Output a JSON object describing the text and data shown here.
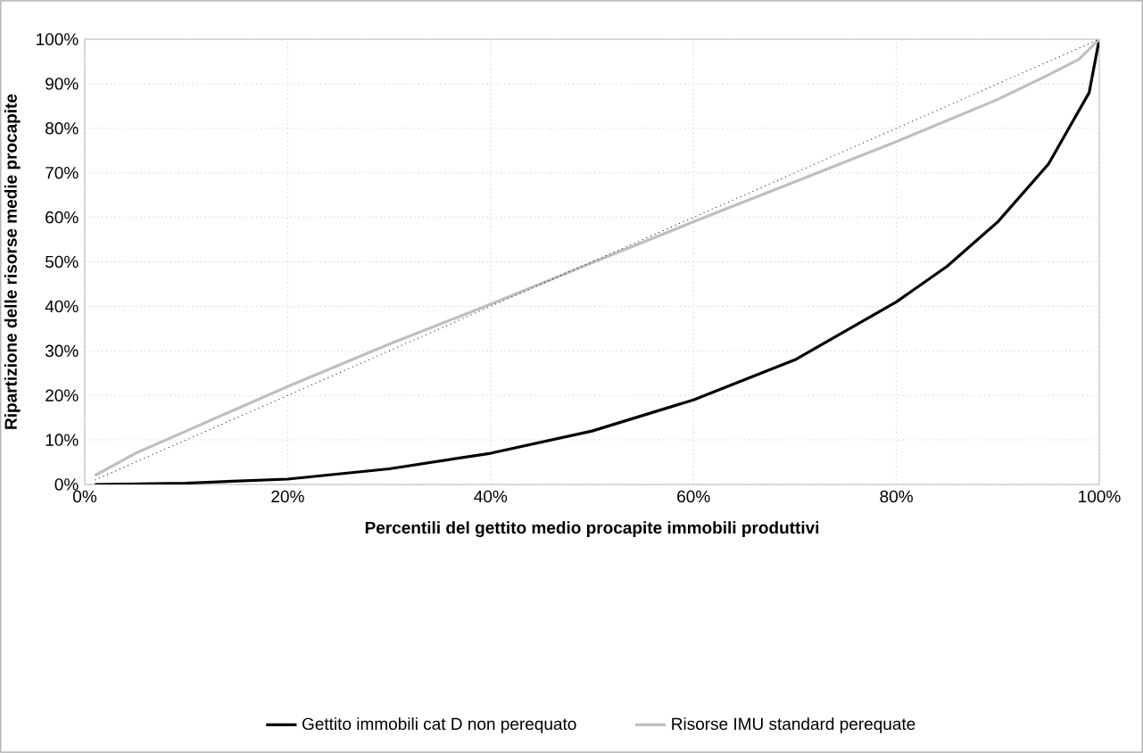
{
  "chart_data": {
    "type": "line",
    "xlabel": "Percentili del gettito medio procapite immobili produttivi",
    "ylabel": "Ripartizione delle risorse medie procapite",
    "xlim": [
      0,
      100
    ],
    "ylim": [
      0,
      100
    ],
    "xticks": [
      {
        "value": 0,
        "label": "0%"
      },
      {
        "value": 20,
        "label": "20%"
      },
      {
        "value": 40,
        "label": "40%"
      },
      {
        "value": 60,
        "label": "60%"
      },
      {
        "value": 80,
        "label": "80%"
      },
      {
        "value": 100,
        "label": "100%"
      }
    ],
    "yticks": [
      {
        "value": 0,
        "label": "0%"
      },
      {
        "value": 10,
        "label": "10%"
      },
      {
        "value": 20,
        "label": "20%"
      },
      {
        "value": 30,
        "label": "30%"
      },
      {
        "value": 40,
        "label": "40%"
      },
      {
        "value": 50,
        "label": "50%"
      },
      {
        "value": 60,
        "label": "60%"
      },
      {
        "value": 70,
        "label": "70%"
      },
      {
        "value": 80,
        "label": "80%"
      },
      {
        "value": 90,
        "label": "90%"
      },
      {
        "value": 100,
        "label": "100%"
      }
    ],
    "grid": true,
    "legend": "bottom",
    "series": [
      {
        "name": "Gettito immobili cat D non perequato",
        "color": "#000000",
        "line_style": "solid",
        "x": [
          1,
          10,
          20,
          30,
          40,
          50,
          60,
          70,
          80,
          85,
          90,
          95,
          97,
          99,
          100
        ],
        "values": [
          0,
          0.3,
          1.2,
          3.5,
          7,
          12,
          19,
          28,
          41,
          49,
          59,
          72,
          80,
          88,
          100
        ]
      },
      {
        "name": "Risorse IMU standard perequate",
        "color": "#bfbfbf",
        "line_style": "solid",
        "x": [
          1,
          5,
          10,
          20,
          30,
          40,
          50,
          60,
          70,
          80,
          90,
          95,
          98,
          100
        ],
        "values": [
          2,
          7,
          12,
          22,
          31.5,
          40.5,
          49.8,
          59,
          68,
          77,
          86.5,
          92,
          95.5,
          100
        ]
      },
      {
        "color": "#000000",
        "line_style": "dotted",
        "x": [
          1,
          100
        ],
        "values": [
          1,
          100
        ]
      }
    ]
  }
}
